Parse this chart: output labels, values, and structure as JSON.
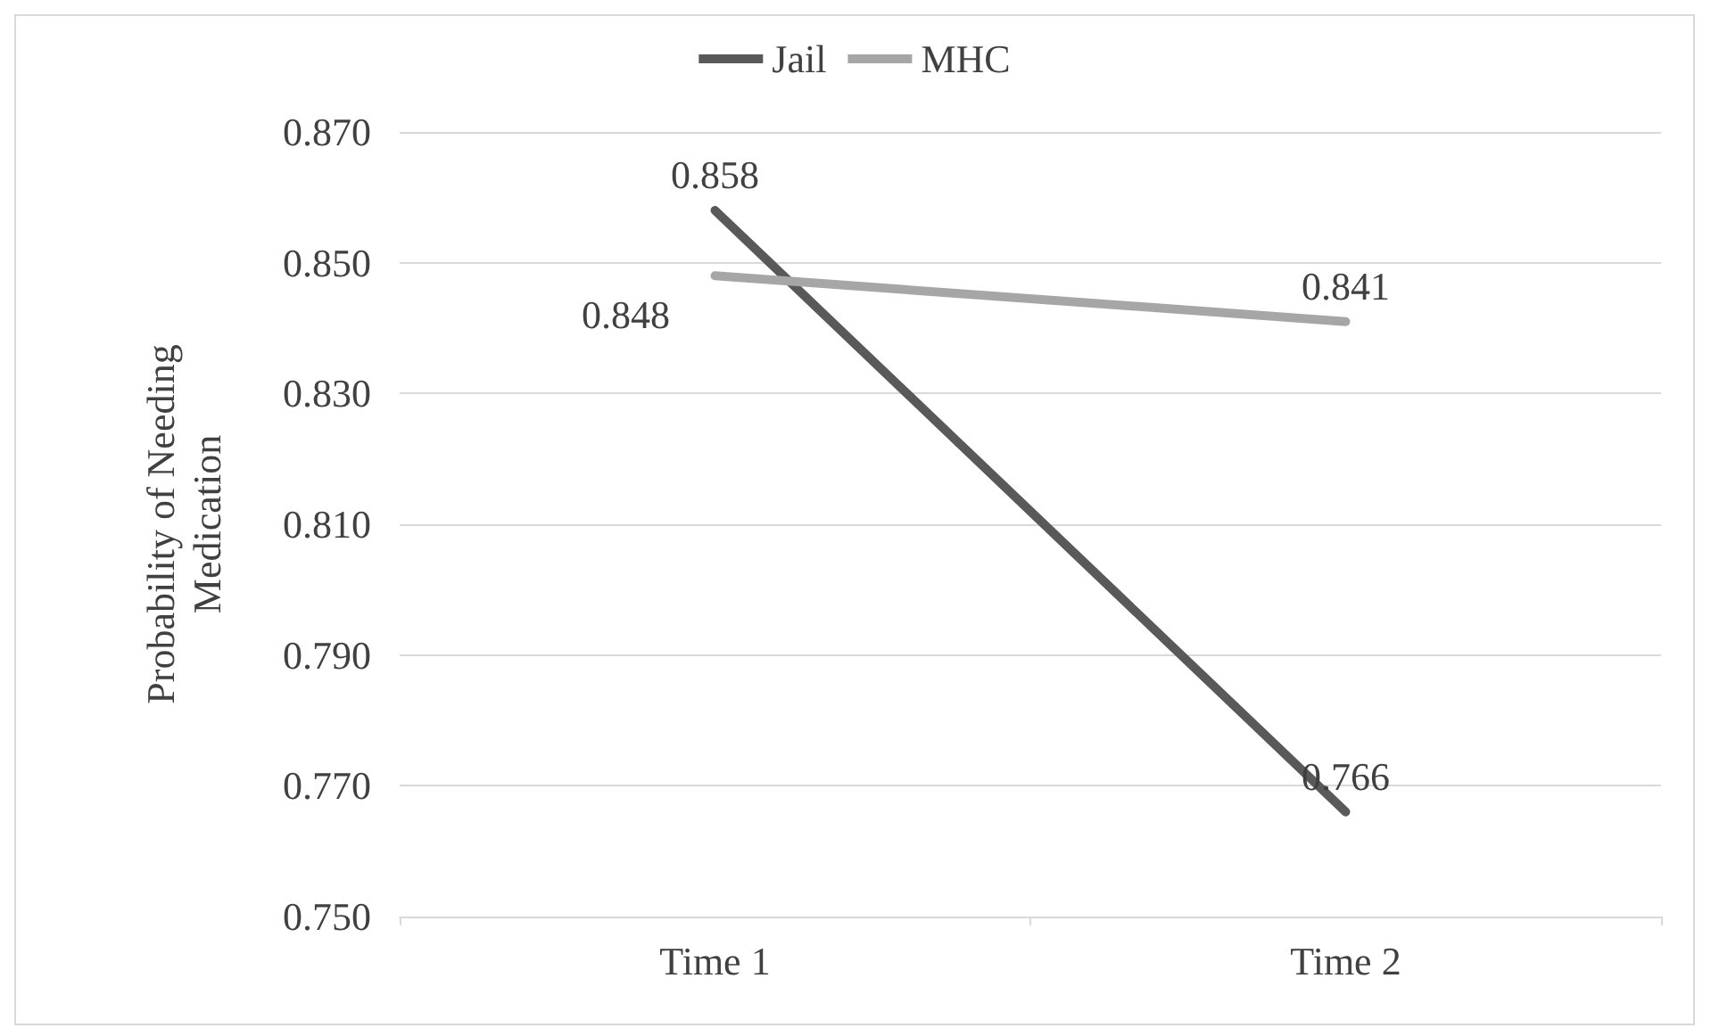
{
  "chart_data": {
    "type": "line",
    "ylabel": "Probability of Needing Medication",
    "categories": [
      "Time 1",
      "Time 2"
    ],
    "series": [
      {
        "name": "Jail",
        "color": "#595959",
        "values": [
          0.858,
          0.766
        ]
      },
      {
        "name": "MHC",
        "color": "#a6a6a6",
        "values": [
          0.848,
          0.841
        ]
      }
    ],
    "ylim": [
      0.75,
      0.87
    ],
    "yticks": [
      {
        "value": 0.75,
        "label": "0.750"
      },
      {
        "value": 0.77,
        "label": "0.770"
      },
      {
        "value": 0.79,
        "label": "0.790"
      },
      {
        "value": 0.81,
        "label": "0.810"
      },
      {
        "value": 0.83,
        "label": "0.830"
      },
      {
        "value": 0.85,
        "label": "0.850"
      },
      {
        "value": 0.87,
        "label": "0.870"
      }
    ],
    "grid": "y",
    "legend": "top",
    "marker": "none",
    "line_style": "solid",
    "data_labels": true
  }
}
